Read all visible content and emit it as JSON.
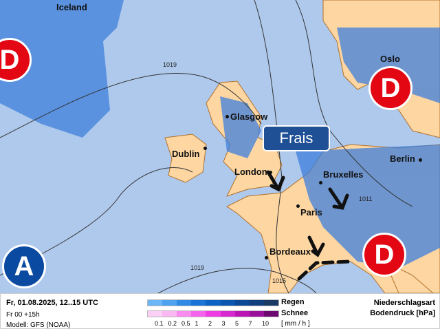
{
  "map": {
    "cities": [
      {
        "name": "Iceland"
      },
      {
        "name": "Oslo"
      },
      {
        "name": "Glasgow"
      },
      {
        "name": "Dublin"
      },
      {
        "name": "London"
      },
      {
        "name": "Bruxelles"
      },
      {
        "name": "Berlin"
      },
      {
        "name": "Paris"
      },
      {
        "name": "Bordeaux"
      }
    ],
    "isobars": [
      "1019",
      "1011",
      "1019",
      "1015"
    ],
    "pressure_systems": [
      "D",
      "D",
      "D",
      "A"
    ],
    "weather_label": "Frais",
    "colors": {
      "sea": "#afc9ec",
      "land": "#fdd6a2",
      "rain": "#3d7fdc",
      "low": "#e30613",
      "high": "#0a4aa0"
    }
  },
  "footer": {
    "datetime": "Fr, 01.08.2025, 12..15 UTC",
    "run": "Fr 00 +15h",
    "model": "Modell: GFS (NOAA)",
    "rain_label": "Regen",
    "snow_label": "Schnee",
    "unit": "[ mm / h ]",
    "scale": [
      "0.1",
      "0.2",
      "0.5",
      "1",
      "2",
      "3",
      "5",
      "7",
      "10"
    ],
    "rain_colors": [
      "#6bb6f7",
      "#4ea2ef",
      "#2f8ae6",
      "#1a74d6",
      "#0c63c4",
      "#0a55ae",
      "#0a4896",
      "#113f7e",
      "#1a3a66"
    ],
    "snow_colors": [
      "#fbd0f6",
      "#f9b8f2",
      "#f98cf0",
      "#f564ec",
      "#ef3de4",
      "#d629cf",
      "#bb16b5",
      "#99109a",
      "#6d0870"
    ],
    "type_title": "Niederschlagsart",
    "pressure_title": "Bodendruck [hPa]"
  }
}
